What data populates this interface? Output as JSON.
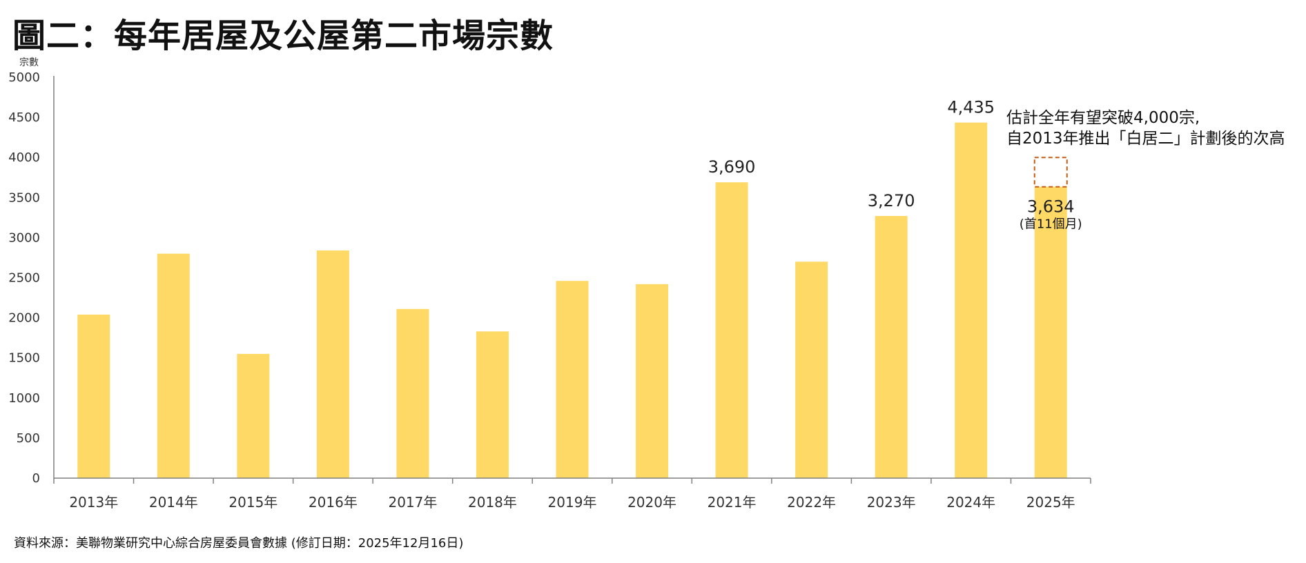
{
  "title": "圖二：每年居屋及公屋第二市場宗數",
  "source": "資料來源：美聯物業研究中心綜合房屋委員會數據 (修訂日期：2025年12月16日)",
  "colors": {
    "bar": "#FFD966",
    "projection_border": "#C55A11",
    "axis": "#7F7F7F"
  },
  "chart_data": {
    "type": "bar",
    "ylabel": "宗數",
    "ylim": [
      0,
      5000
    ],
    "yticks": [
      "0",
      "500",
      "1000",
      "1500",
      "2000",
      "2500",
      "3000",
      "3500",
      "4000",
      "4500",
      "5000"
    ],
    "categories": [
      "2013年",
      "2014年",
      "2015年",
      "2016年",
      "2017年",
      "2018年",
      "2019年",
      "2020年",
      "2021年",
      "2022年",
      "2023年",
      "2024年",
      "2025年"
    ],
    "values": [
      2040,
      2800,
      1550,
      2840,
      2110,
      1830,
      2460,
      2420,
      3690,
      2700,
      3270,
      4435,
      3634
    ],
    "data_labels": [
      {
        "index": 8,
        "text": "3,690"
      },
      {
        "index": 10,
        "text": "3,270"
      },
      {
        "index": 11,
        "text": "4,435"
      },
      {
        "index": 12,
        "text": "3,634",
        "note": "(首11個月)"
      }
    ],
    "projection": {
      "index": 12,
      "from": 3634,
      "to": 4000
    },
    "annotation": [
      "估計全年有望突破4,000宗,",
      "自2013年推出「白居二」計劃後的次高"
    ],
    "grid": false,
    "legend": "none"
  }
}
